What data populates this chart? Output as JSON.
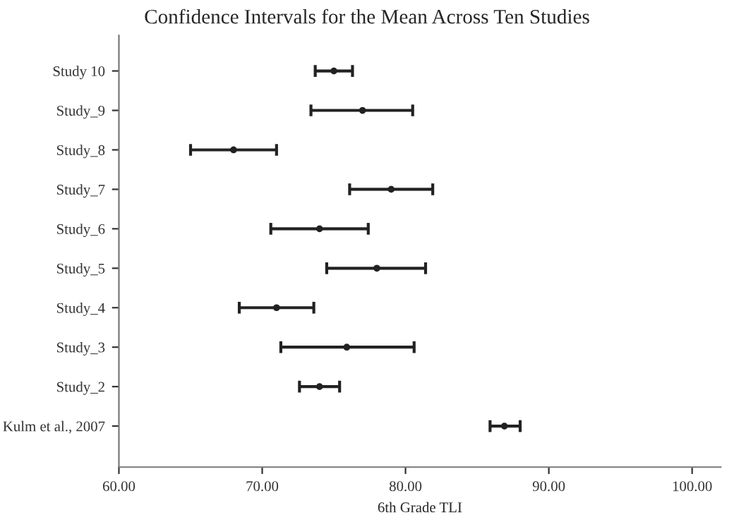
{
  "chart_data": {
    "type": "scatter",
    "orientation": "horizontal",
    "title": "Confidence Intervals for the Mean Across Ten Studies",
    "xlabel": "6th Grade TLI",
    "categories": [
      "Study 10",
      "Study_9",
      "Study_8",
      "Study_7",
      "Study_6",
      "Study_5",
      "Study_4",
      "Study_3",
      "Study_2",
      "Kulm et al., 2007"
    ],
    "values": [
      75.0,
      77.0,
      68.0,
      79.0,
      74.0,
      78.0,
      71.0,
      75.9,
      74.0,
      86.9
    ],
    "errors": [
      [
        73.7,
        76.3
      ],
      [
        73.4,
        80.5
      ],
      [
        65.0,
        71.0
      ],
      [
        76.1,
        81.9
      ],
      [
        70.6,
        77.4
      ],
      [
        74.5,
        81.4
      ],
      [
        68.4,
        73.6
      ],
      [
        71.3,
        80.6
      ],
      [
        72.6,
        75.4
      ],
      [
        85.9,
        88.0
      ]
    ],
    "color": "#222222",
    "marker": "circle",
    "grid": false,
    "xlim": [
      60,
      102
    ],
    "xticks": [
      {
        "value": 60,
        "label": "60.00"
      },
      {
        "value": 70,
        "label": "70.00"
      },
      {
        "value": 80,
        "label": "80.00"
      },
      {
        "value": 90,
        "label": "90.00"
      },
      {
        "value": 100,
        "label": "100.00"
      }
    ]
  }
}
